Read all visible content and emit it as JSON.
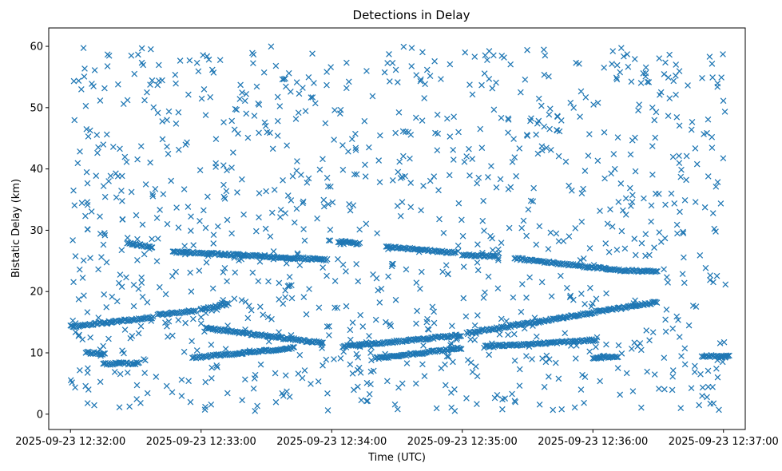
{
  "chart_data": {
    "type": "scatter",
    "title": "Detections in Delay",
    "xlabel": "Time (UTC)",
    "ylabel": "Bistatic Delay (km)",
    "marker": "x",
    "color": "#1f77b4",
    "grid": false,
    "legend": "none",
    "xlim": [
      "2025-09-23 12:31:50",
      "2025-09-23 12:37:10"
    ],
    "ylim": [
      -2.5,
      63
    ],
    "xticks": [
      "2025-09-23 12:32:00",
      "2025-09-23 12:33:00",
      "2025-09-23 12:34:00",
      "2025-09-23 12:35:00",
      "2025-09-23 12:36:00",
      "2025-09-23 12:37:00"
    ],
    "yticks": [
      "0",
      "10",
      "20",
      "30",
      "40",
      "50",
      "60"
    ],
    "tracks": [
      {
        "x": [
          "2025-09-23 12:32:00",
          "2025-09-23 12:32:38"
        ],
        "y": [
          14.3,
          15.8
        ]
      },
      {
        "x": [
          "2025-09-23 12:32:40",
          "2025-09-23 12:32:58"
        ],
        "y": [
          16.2,
          16.9
        ]
      },
      {
        "x": [
          "2025-09-23 12:33:00",
          "2025-09-23 12:33:13"
        ],
        "y": [
          17.1,
          18.0
        ]
      },
      {
        "x": [
          "2025-09-23 12:32:26",
          "2025-09-23 12:32:38"
        ],
        "y": [
          27.9,
          27.2
        ]
      },
      {
        "x": [
          "2025-09-23 12:32:47",
          "2025-09-23 12:33:58"
        ],
        "y": [
          26.5,
          25.2
        ]
      },
      {
        "x": [
          "2025-09-23 12:34:03",
          "2025-09-23 12:34:13"
        ],
        "y": [
          28.2,
          27.8
        ]
      },
      {
        "x": [
          "2025-09-23 12:34:25",
          "2025-09-23 12:34:57"
        ],
        "y": [
          27.3,
          26.3
        ]
      },
      {
        "x": [
          "2025-09-23 12:35:00",
          "2025-09-23 12:35:16"
        ],
        "y": [
          26.0,
          25.7
        ]
      },
      {
        "x": [
          "2025-09-23 12:35:24",
          "2025-09-23 12:36:06"
        ],
        "y": [
          25.4,
          23.7
        ]
      },
      {
        "x": [
          "2025-09-23 12:36:06",
          "2025-09-23 12:36:30"
        ],
        "y": [
          23.6,
          23.2
        ]
      },
      {
        "x": [
          "2025-09-23 12:33:02",
          "2025-09-23 12:33:56"
        ],
        "y": [
          14.0,
          11.6
        ]
      },
      {
        "x": [
          "2025-09-23 12:32:56",
          "2025-09-23 12:33:43"
        ],
        "y": [
          9.2,
          10.8
        ]
      },
      {
        "x": [
          "2025-09-23 12:34:05",
          "2025-09-23 12:35:00"
        ],
        "y": [
          11.0,
          12.9
        ]
      },
      {
        "x": [
          "2025-09-23 12:35:02",
          "2025-09-23 12:36:30"
        ],
        "y": [
          13.2,
          18.3
        ]
      },
      {
        "x": [
          "2025-09-23 12:34:20",
          "2025-09-23 12:35:00"
        ],
        "y": [
          9.1,
          10.8
        ]
      },
      {
        "x": [
          "2025-09-23 12:35:10",
          "2025-09-23 12:36:02"
        ],
        "y": [
          11.0,
          12.1
        ]
      },
      {
        "x": [
          "2025-09-23 12:32:07",
          "2025-09-23 12:32:16"
        ],
        "y": [
          10.1,
          9.8
        ]
      },
      {
        "x": [
          "2025-09-23 12:32:15",
          "2025-09-23 12:32:32"
        ],
        "y": [
          8.2,
          8.3
        ]
      },
      {
        "x": [
          "2025-09-23 12:36:00",
          "2025-09-23 12:36:12"
        ],
        "y": [
          9.2,
          9.4
        ]
      },
      {
        "x": [
          "2025-09-23 12:36:50",
          "2025-09-23 12:37:03"
        ],
        "y": [
          9.5,
          9.4
        ]
      }
    ]
  }
}
